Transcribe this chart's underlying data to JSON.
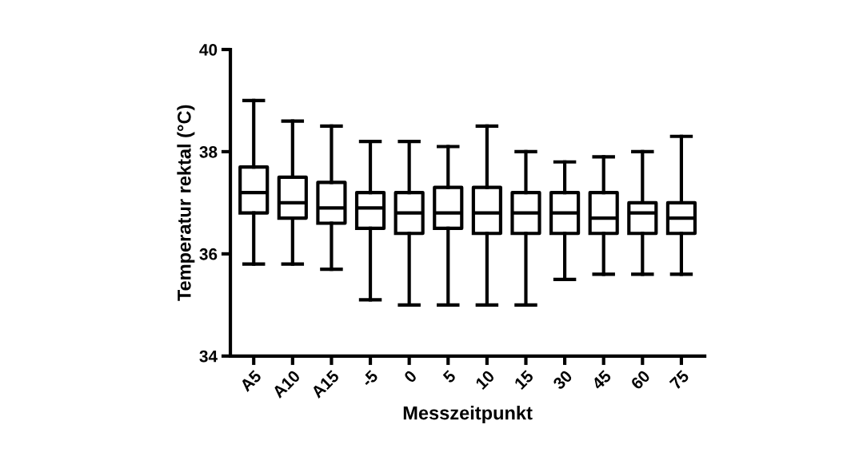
{
  "chart_data": {
    "type": "box",
    "xlabel": "Messzeitpunkt",
    "ylabel": "Temperatur rektal (°C)",
    "categories": [
      "A5",
      "A10",
      "A15",
      "-5",
      "0",
      "5",
      "10",
      "15",
      "30",
      "45",
      "60",
      "75"
    ],
    "ylim": [
      34,
      40
    ],
    "yticks": [
      34,
      36,
      38,
      40
    ],
    "grid": false,
    "boxes": [
      {
        "low": 35.8,
        "q1": 36.8,
        "median": 37.2,
        "q3": 37.7,
        "high": 39.0
      },
      {
        "low": 35.8,
        "q1": 36.7,
        "median": 37.0,
        "q3": 37.5,
        "high": 38.6
      },
      {
        "low": 35.7,
        "q1": 36.6,
        "median": 36.9,
        "q3": 37.4,
        "high": 38.5
      },
      {
        "low": 35.1,
        "q1": 36.5,
        "median": 36.9,
        "q3": 37.2,
        "high": 38.2
      },
      {
        "low": 35.0,
        "q1": 36.4,
        "median": 36.8,
        "q3": 37.2,
        "high": 38.2
      },
      {
        "low": 35.0,
        "q1": 36.5,
        "median": 36.8,
        "q3": 37.3,
        "high": 38.1
      },
      {
        "low": 35.0,
        "q1": 36.4,
        "median": 36.8,
        "q3": 37.3,
        "high": 38.5
      },
      {
        "low": 35.0,
        "q1": 36.4,
        "median": 36.8,
        "q3": 37.2,
        "high": 38.0
      },
      {
        "low": 35.5,
        "q1": 36.4,
        "median": 36.8,
        "q3": 37.2,
        "high": 37.8
      },
      {
        "low": 35.6,
        "q1": 36.4,
        "median": 36.7,
        "q3": 37.2,
        "high": 37.9
      },
      {
        "low": 35.6,
        "q1": 36.4,
        "median": 36.8,
        "q3": 37.0,
        "high": 38.0
      },
      {
        "low": 35.6,
        "q1": 36.4,
        "median": 36.7,
        "q3": 37.0,
        "high": 38.3
      }
    ]
  }
}
